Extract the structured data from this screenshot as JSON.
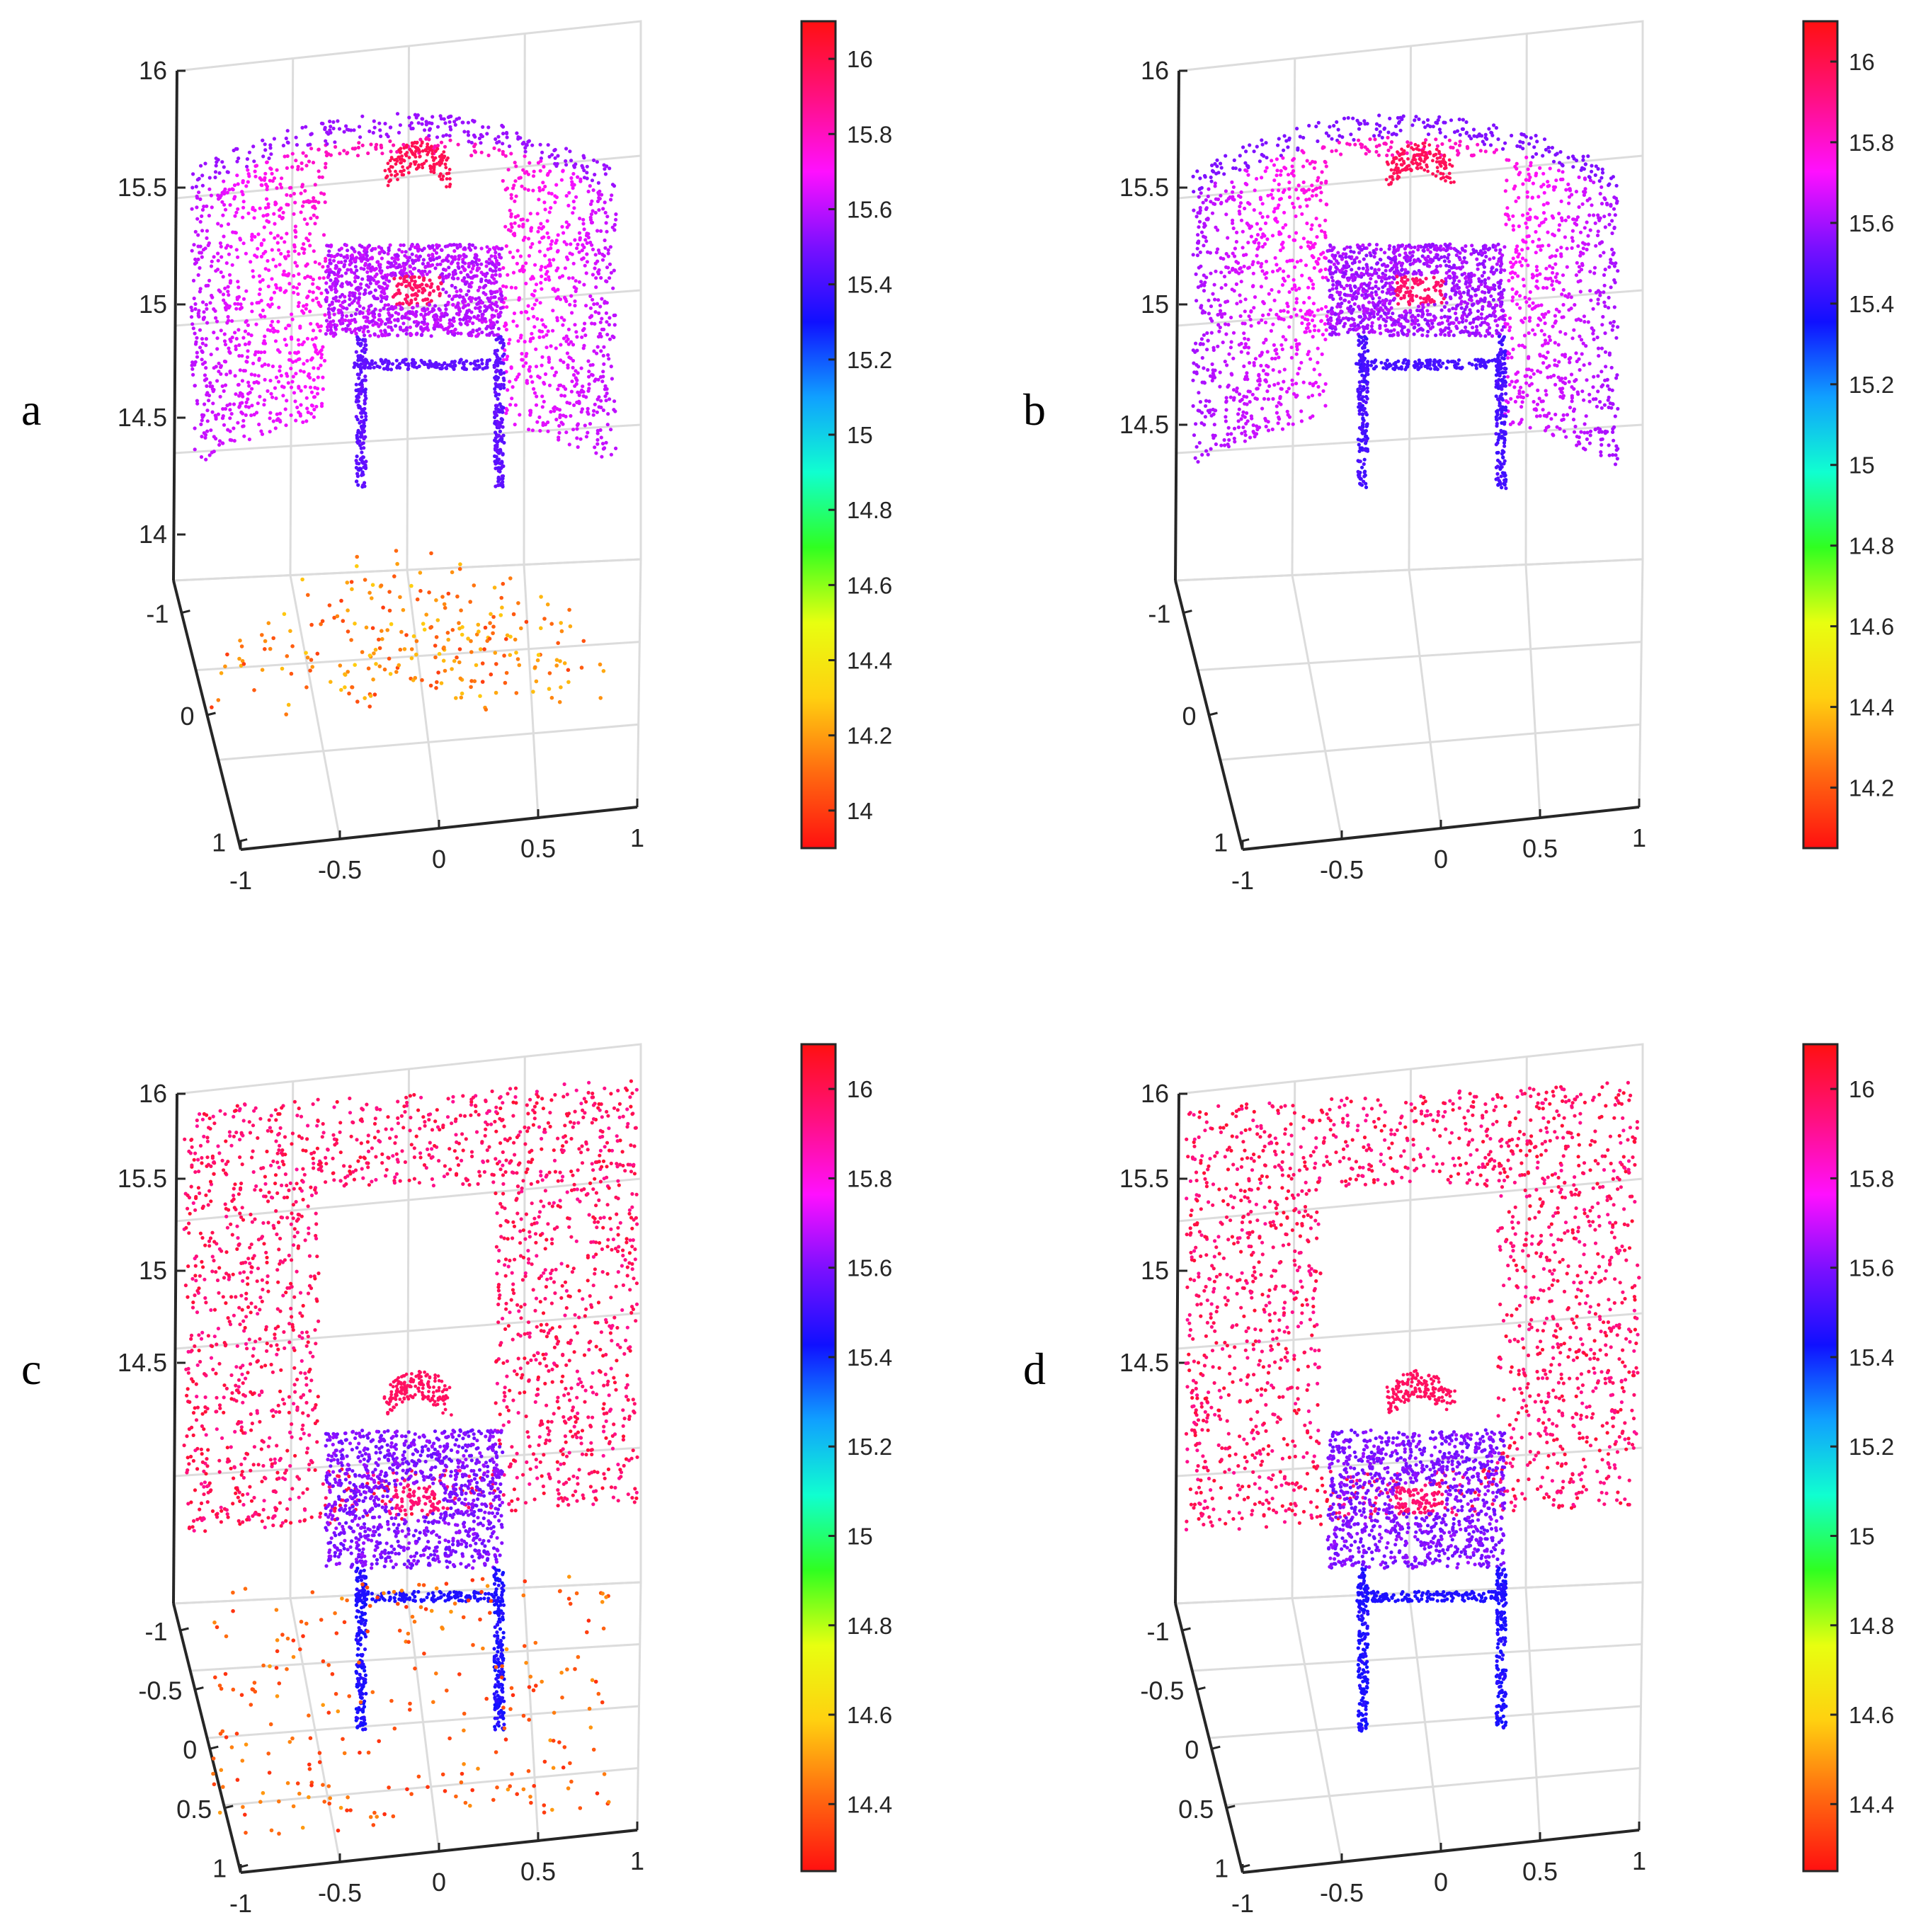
{
  "figure": {
    "panels": [
      {
        "label": "a"
      },
      {
        "label": "b"
      },
      {
        "label": "c"
      },
      {
        "label": "d"
      }
    ]
  },
  "colors": {
    "colormap": [
      "#ff1010",
      "#ff6a10",
      "#ffd010",
      "#e8ff10",
      "#30ff20",
      "#10ffd0",
      "#10a0ff",
      "#1010ff",
      "#7a10ff",
      "#ff10ff",
      "#ff1080",
      "#ff1010"
    ],
    "axis": "#262626",
    "grid": "#dcdcdc"
  },
  "chart_data": [
    {
      "type": "scatter3d",
      "panel": "a",
      "z_ticks": [
        "16",
        "15.5",
        "15",
        "14.5",
        "14"
      ],
      "y_ticks": [
        "-1",
        "0",
        "1"
      ],
      "x_ticks": [
        "-1",
        "-0.5",
        "0",
        "0.5",
        "1"
      ],
      "colorbar": {
        "ticks": [
          "16",
          "15.8",
          "15.6",
          "15.4",
          "15.2",
          "15",
          "14.8",
          "14.6",
          "14.4",
          "14.2",
          "14"
        ],
        "range": [
          13.9,
          16.1
        ]
      },
      "series": [
        {
          "kind": "wall",
          "shape": "curved",
          "depth_range": [
            15.5,
            15.9
          ]
        },
        {
          "kind": "chair",
          "seat_depth": 15.6,
          "leg_depth": 15.45
        },
        {
          "kind": "sparse-noise",
          "depth_range": [
            14.0,
            14.3
          ]
        }
      ]
    },
    {
      "type": "scatter3d",
      "panel": "b",
      "z_ticks": [
        "16",
        "15.5",
        "15",
        "14.5"
      ],
      "y_ticks": [
        "-1",
        "0",
        "1"
      ],
      "x_ticks": [
        "-1",
        "-0.5",
        "0",
        "0.5",
        "1"
      ],
      "colorbar": {
        "ticks": [
          "16",
          "15.8",
          "15.6",
          "15.4",
          "15.2",
          "15",
          "14.8",
          "14.6",
          "14.4",
          "14.2"
        ],
        "range": [
          14.05,
          16.1
        ]
      },
      "series": [
        {
          "kind": "wall",
          "shape": "curved",
          "depth_range": [
            15.5,
            15.9
          ]
        },
        {
          "kind": "chair",
          "seat_depth": 15.6,
          "leg_depth": 15.45
        }
      ]
    },
    {
      "type": "scatter3d",
      "panel": "c",
      "z_ticks": [
        "16",
        "15.5",
        "15",
        "14.5"
      ],
      "y_ticks": [
        "-1",
        "-0.5",
        "0",
        "0.5",
        "1"
      ],
      "x_ticks": [
        "-1",
        "-0.5",
        "0",
        "0.5",
        "1"
      ],
      "colorbar": {
        "ticks": [
          "16",
          "15.8",
          "15.6",
          "15.4",
          "15.2",
          "15",
          "14.8",
          "14.6",
          "14.4"
        ],
        "range": [
          14.25,
          16.1
        ]
      },
      "series": [
        {
          "kind": "wall",
          "shape": "flat",
          "depth_range": [
            15.9,
            16.05
          ]
        },
        {
          "kind": "chair",
          "seat_depth": 15.6,
          "leg_depth": 15.45
        },
        {
          "kind": "sparse-noise",
          "depth_range": [
            14.3,
            14.5
          ]
        }
      ]
    },
    {
      "type": "scatter3d",
      "panel": "d",
      "z_ticks": [
        "16",
        "15.5",
        "15",
        "14.5"
      ],
      "y_ticks": [
        "-1",
        "-0.5",
        "0",
        "0.5",
        "1"
      ],
      "x_ticks": [
        "-1",
        "-0.5",
        "0",
        "0.5",
        "1"
      ],
      "colorbar": {
        "ticks": [
          "16",
          "15.8",
          "15.6",
          "15.4",
          "15.2",
          "15",
          "14.8",
          "14.6",
          "14.4"
        ],
        "range": [
          14.25,
          16.1
        ]
      },
      "series": [
        {
          "kind": "wall",
          "shape": "flat",
          "depth_range": [
            15.9,
            16.05
          ]
        },
        {
          "kind": "chair",
          "seat_depth": 15.6,
          "leg_depth": 15.45
        }
      ]
    }
  ]
}
